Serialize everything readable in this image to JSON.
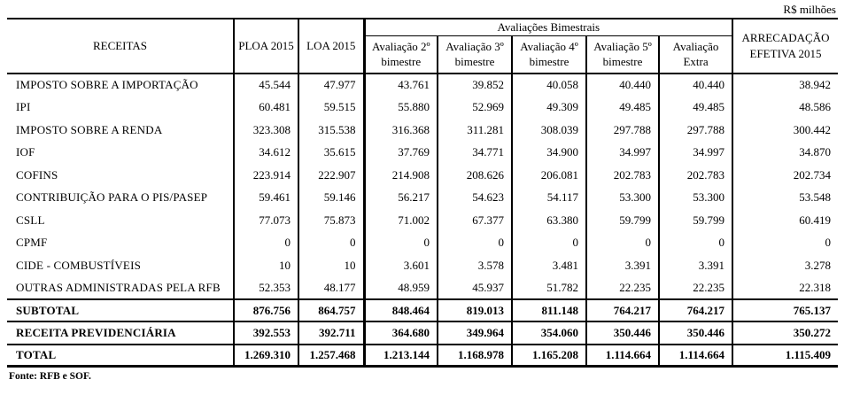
{
  "meta": {
    "unit_label": "R$ milhões",
    "source_note": "Fonte: RFB e SOF."
  },
  "table": {
    "headers": {
      "receitas": "RECEITAS",
      "ploa": "PLOA 2015",
      "loa": "LOA 2015",
      "bimonthly_group": "Avaliações Bimestrais",
      "bimonthly": [
        {
          "l1": "Avaliação 2º",
          "l2": "bimestre"
        },
        {
          "l1": "Avaliação 3º",
          "l2": "bimestre"
        },
        {
          "l1": "Avaliação 4º",
          "l2": "bimestre"
        },
        {
          "l1": "Avaliação 5º",
          "l2": "bimestre"
        },
        {
          "l1": "Avaliação",
          "l2": "Extra"
        }
      ],
      "arrecadacao": {
        "l1": "ARRECADAÇÃO",
        "l2": "EFETIVA 2015"
      }
    },
    "rows": [
      {
        "label": "IMPOSTO SOBRE A IMPORTAÇÃO",
        "values": [
          "45.544",
          "47.977",
          "43.761",
          "39.852",
          "40.058",
          "40.440",
          "40.440",
          "38.942"
        ]
      },
      {
        "label": "IPI",
        "values": [
          "60.481",
          "59.515",
          "55.880",
          "52.969",
          "49.309",
          "49.485",
          "49.485",
          "48.586"
        ]
      },
      {
        "label": "IMPOSTO SOBRE A RENDA",
        "values": [
          "323.308",
          "315.538",
          "316.368",
          "311.281",
          "308.039",
          "297.788",
          "297.788",
          "300.442"
        ]
      },
      {
        "label": "IOF",
        "values": [
          "34.612",
          "35.615",
          "37.769",
          "34.771",
          "34.900",
          "34.997",
          "34.997",
          "34.870"
        ]
      },
      {
        "label": "COFINS",
        "values": [
          "223.914",
          "222.907",
          "214.908",
          "208.626",
          "206.081",
          "202.783",
          "202.783",
          "202.734"
        ]
      },
      {
        "label": "CONTRIBUIÇÃO PARA O PIS/PASEP",
        "values": [
          "59.461",
          "59.146",
          "56.217",
          "54.623",
          "54.117",
          "53.300",
          "53.300",
          "53.548"
        ]
      },
      {
        "label": "CSLL",
        "values": [
          "77.073",
          "75.873",
          "71.002",
          "67.377",
          "63.380",
          "59.799",
          "59.799",
          "60.419"
        ]
      },
      {
        "label": "CPMF",
        "values": [
          "0",
          "0",
          "0",
          "0",
          "0",
          "0",
          "0",
          "0"
        ]
      },
      {
        "label": "CIDE - COMBUSTÍVEIS",
        "values": [
          "10",
          "10",
          "3.601",
          "3.578",
          "3.481",
          "3.391",
          "3.391",
          "3.278"
        ]
      },
      {
        "label": "OUTRAS ADMINISTRADAS PELA RFB",
        "values": [
          "52.353",
          "48.177",
          "48.959",
          "45.937",
          "51.782",
          "22.235",
          "22.235",
          "22.318"
        ]
      }
    ],
    "totals": [
      {
        "label": "SUBTOTAL",
        "values": [
          "876.756",
          "864.757",
          "848.464",
          "819.013",
          "811.148",
          "764.217",
          "764.217",
          "765.137"
        ]
      },
      {
        "label": "RECEITA PREVIDENCIÁRIA",
        "values": [
          "392.553",
          "392.711",
          "364.680",
          "349.964",
          "354.060",
          "350.446",
          "350.446",
          "350.272"
        ]
      },
      {
        "label": "TOTAL",
        "values": [
          "1.269.310",
          "1.257.468",
          "1.213.144",
          "1.168.978",
          "1.165.208",
          "1.114.664",
          "1.114.664",
          "1.115.409"
        ]
      }
    ]
  }
}
